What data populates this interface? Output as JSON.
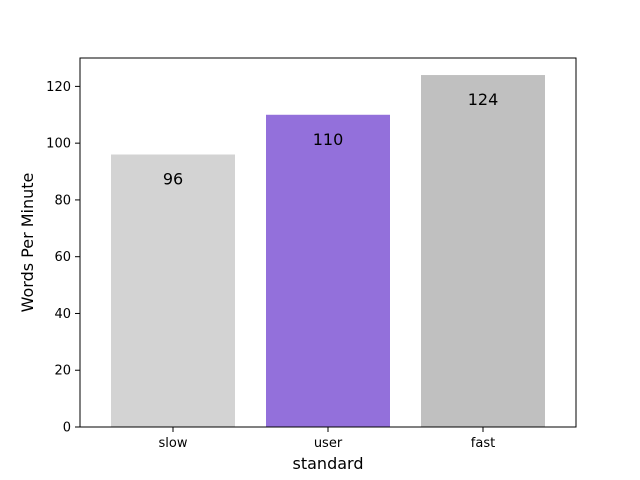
{
  "chart_data": {
    "type": "bar",
    "categories": [
      "slow",
      "user",
      "fast"
    ],
    "values": [
      96,
      110,
      124
    ],
    "colors": [
      "#d3d3d3",
      "#9370db",
      "#c0c0c0"
    ],
    "title": "",
    "xlabel": "standard",
    "ylabel": "Words Per Minute",
    "ylim": [
      0,
      130
    ],
    "yticks": [
      0,
      20,
      40,
      60,
      80,
      100,
      120
    ],
    "grid": false,
    "legend": "none"
  }
}
